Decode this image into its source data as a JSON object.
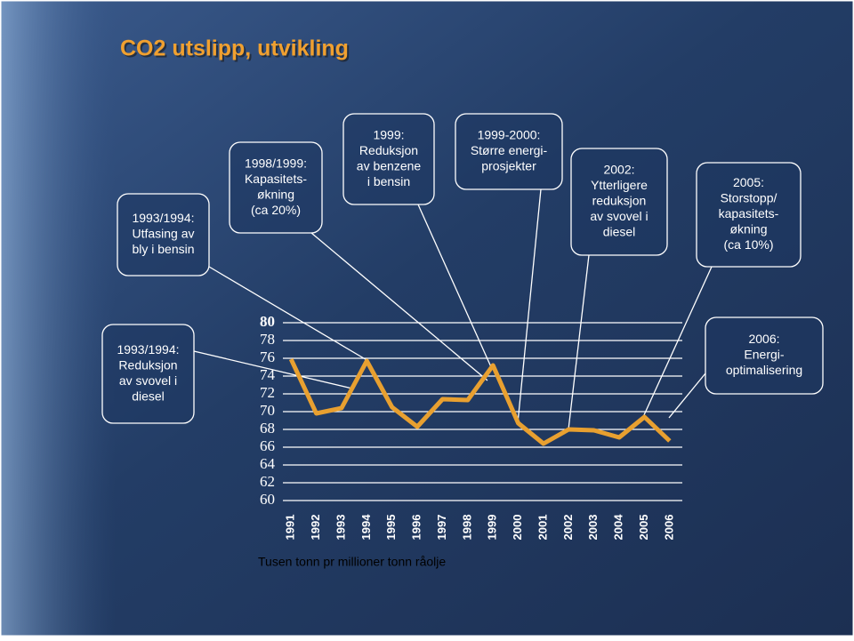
{
  "chart_data": {
    "type": "line",
    "title": "CO2 utslipp, utvikling",
    "y_label": "Tusen tonn pr millioner tonn råolje",
    "categories": [
      "1991",
      "1992",
      "1993",
      "1994",
      "1995",
      "1996",
      "1997",
      "1998",
      "1999",
      "2000",
      "2001",
      "2002",
      "2003",
      "2004",
      "2005",
      "2006"
    ],
    "values": [
      75.9,
      69.8,
      70.4,
      75.7,
      70.5,
      68.3,
      71.4,
      71.3,
      75.2,
      68.7,
      66.4,
      68.0,
      67.9,
      67.1,
      69.4,
      66.7
    ],
    "color": "#e8a030",
    "ylim": [
      60,
      80
    ],
    "yticks": [
      60,
      62,
      64,
      66,
      68,
      70,
      72,
      74,
      76,
      78,
      80
    ],
    "grid": true,
    "annotations": [
      {
        "lines": [
          "1993/1994:",
          "Utfasing av",
          "bly i bensin"
        ]
      },
      {
        "lines": [
          "1998/1999:",
          "Kapasitets-",
          "økning",
          "(ca 20%)"
        ]
      },
      {
        "lines": [
          "1999:",
          "Reduksjon",
          "av benzene",
          "i bensin"
        ]
      },
      {
        "lines": [
          "1999-2000:",
          "Større energi-",
          "prosjekter"
        ]
      },
      {
        "lines": [
          "2002:",
          "Ytterligere",
          "reduksjon",
          "av svovel i",
          "diesel"
        ]
      },
      {
        "lines": [
          "2005:",
          "Storstopp/",
          "kapasitets-",
          "økning",
          "(ca 10%)"
        ]
      },
      {
        "lines": [
          "1993/1994:",
          "Reduksjon",
          "av svovel i",
          "diesel"
        ]
      },
      {
        "lines": [
          "2006:",
          "Energi-",
          "optimalisering"
        ]
      }
    ]
  }
}
